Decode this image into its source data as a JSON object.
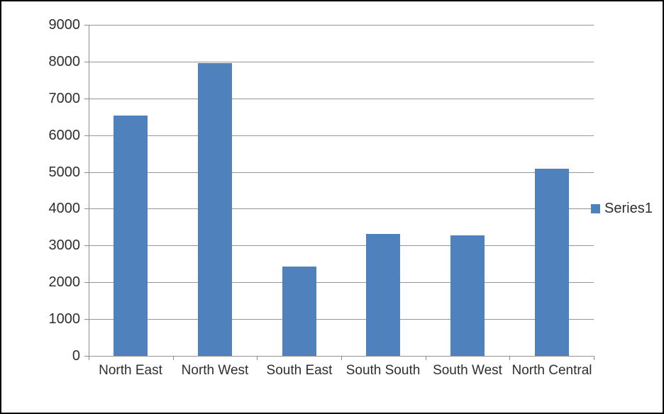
{
  "chart_data": {
    "type": "bar",
    "title": "",
    "categories": [
      "North East",
      "North West",
      "South East",
      "South South",
      "South West",
      "North Central"
    ],
    "series": [
      {
        "name": "Series1",
        "values": [
          6530,
          7960,
          2430,
          3310,
          3270,
          5080
        ]
      }
    ],
    "xlabel": "",
    "ylabel": "",
    "ylim": [
      0,
      9000
    ],
    "ytick_step": 1000,
    "ytick_labels": [
      "0",
      "1000",
      "2000",
      "3000",
      "4000",
      "5000",
      "6000",
      "7000",
      "8000",
      "9000"
    ],
    "grid": true,
    "legend_position": "right",
    "colors": {
      "bar": "#4F81BD",
      "gridline": "#969696",
      "axis": "#8e8e8e",
      "text": "#2e2e2e",
      "background": "#ffffff",
      "frame_border": "#000000"
    }
  },
  "legend": {
    "label": "Series1"
  }
}
